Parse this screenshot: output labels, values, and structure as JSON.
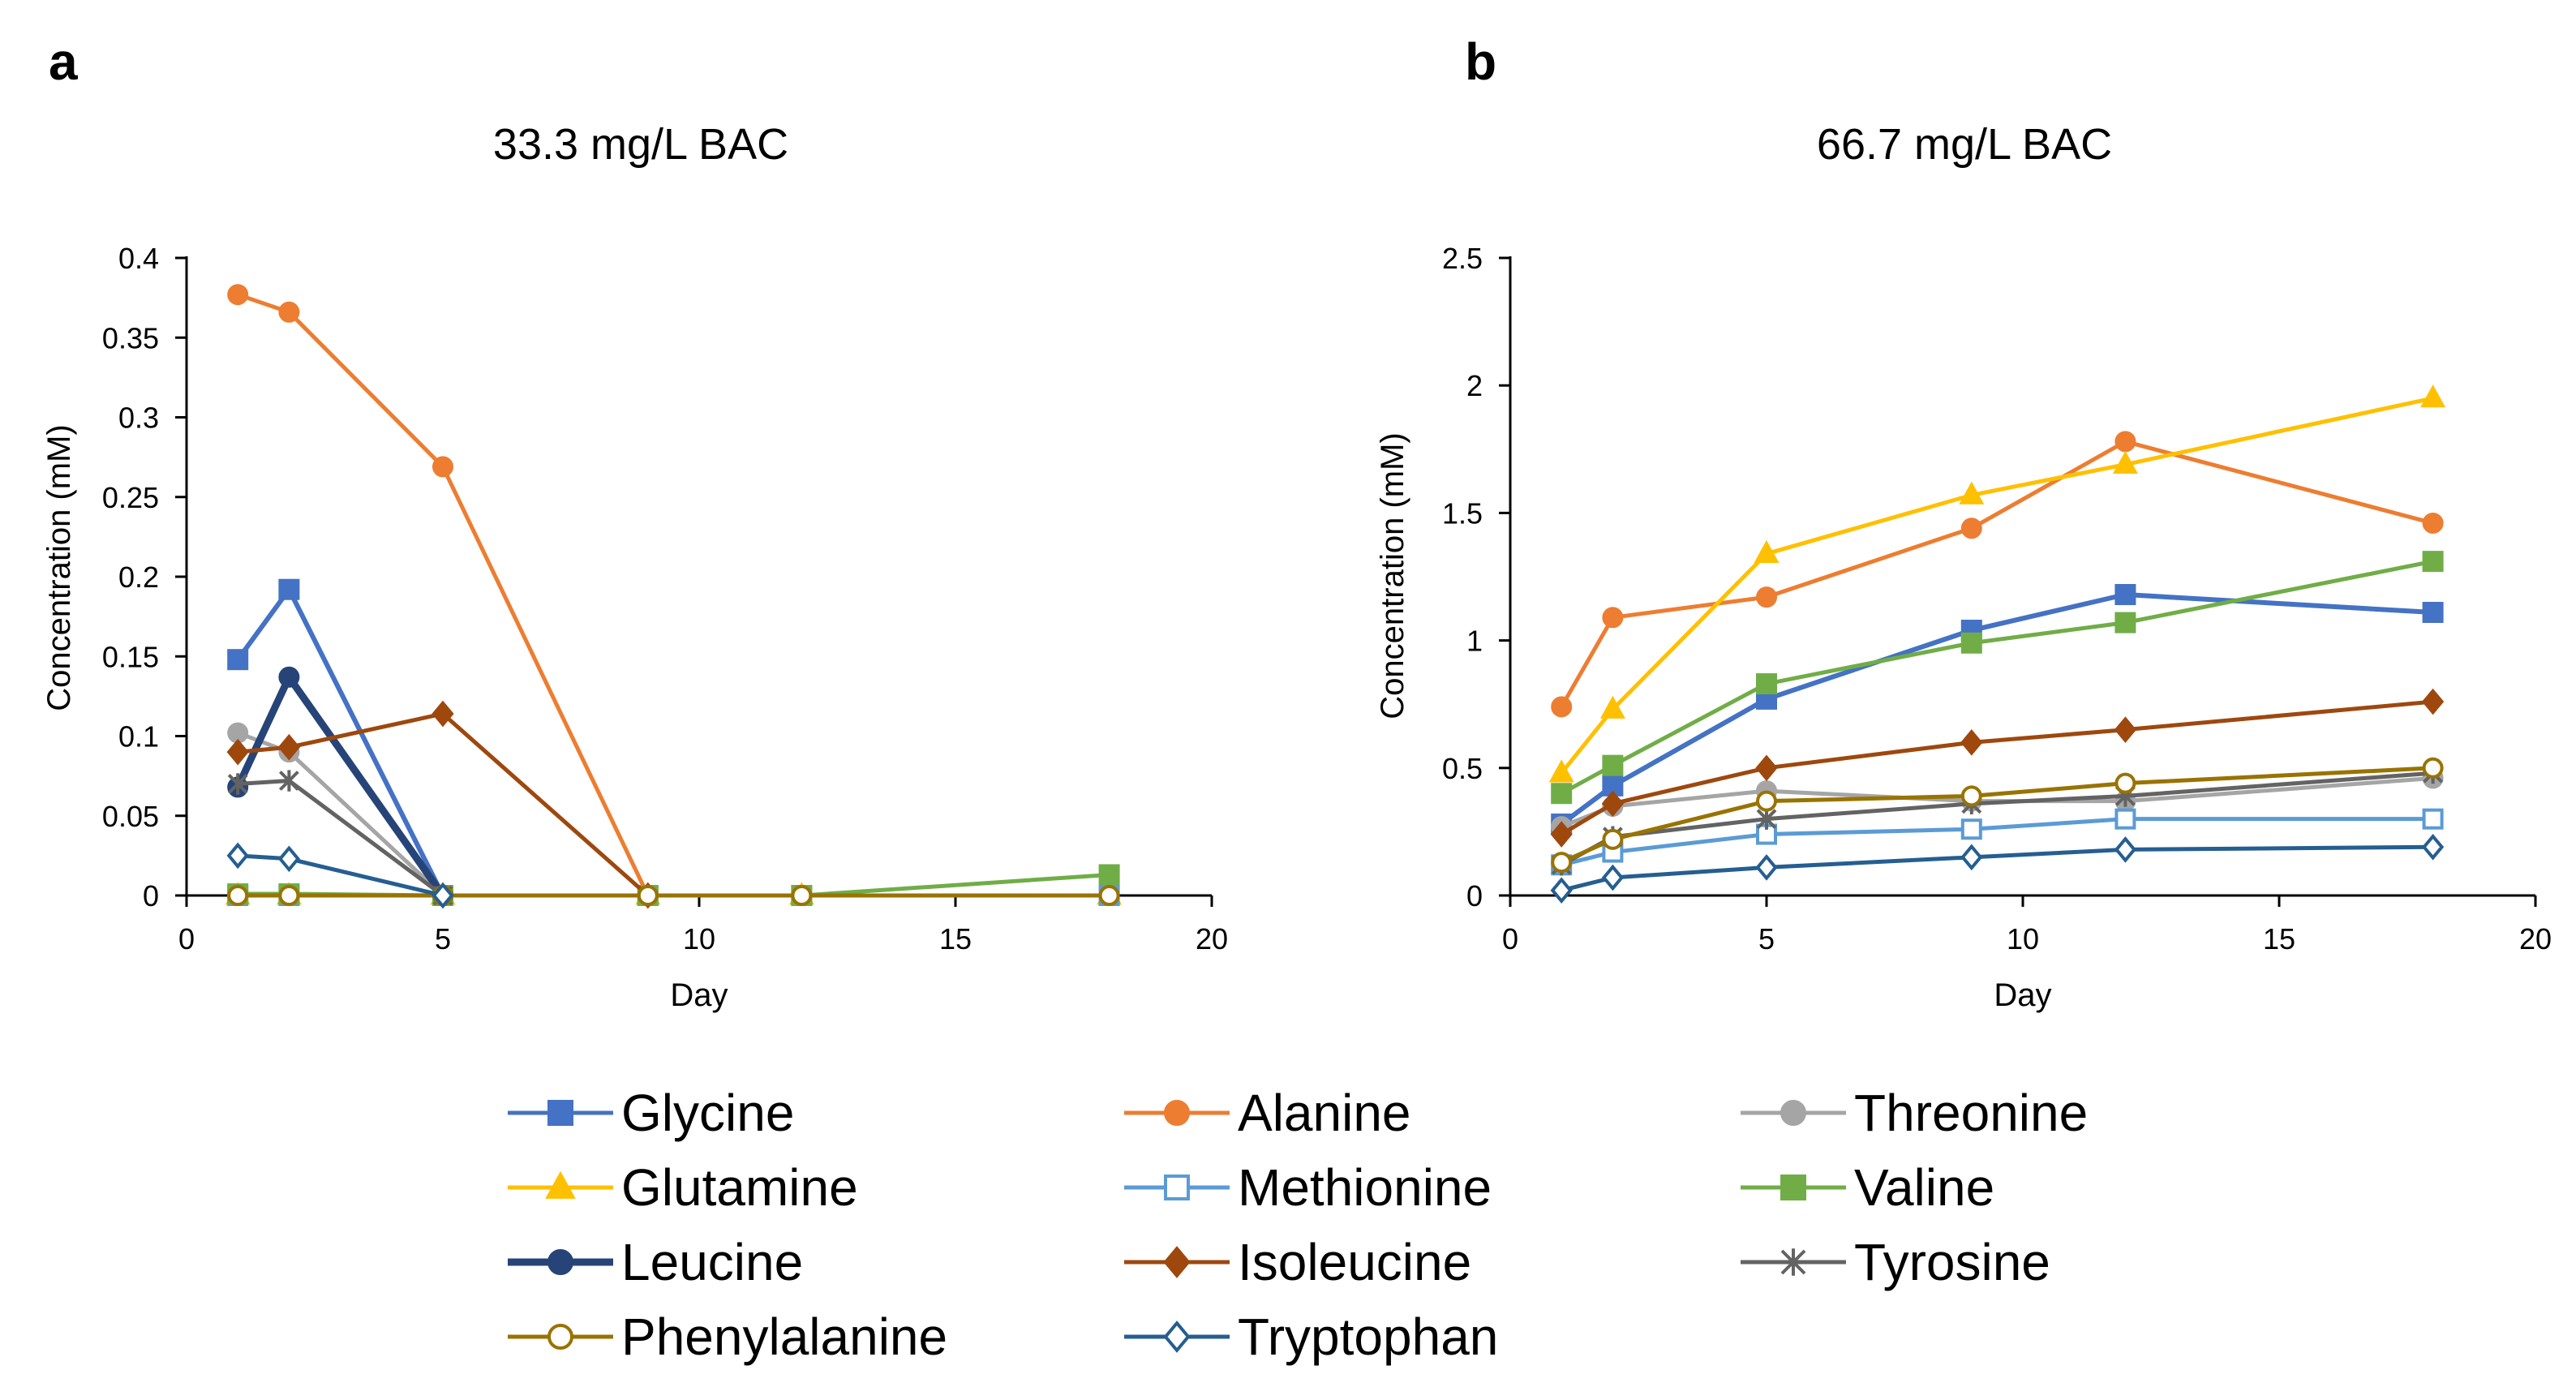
{
  "chart_data": [
    {
      "type": "line",
      "panel_label": "a",
      "title": "33.3 mg/L BAC",
      "xlabel": "Day",
      "ylabel": "Concentration (mM)",
      "xlim": [
        0,
        20
      ],
      "ylim": [
        0,
        0.4
      ],
      "xticks": [
        0,
        5,
        10,
        15,
        20
      ],
      "yticks": [
        0,
        0.05,
        0.1,
        0.15,
        0.2,
        0.25,
        0.3,
        0.35,
        0.4
      ],
      "ytick_labels": [
        "0",
        "0.05",
        "0.1",
        "0.15",
        "0.2",
        "0.25",
        "0.3",
        "0.35",
        "0.4"
      ],
      "grid": false,
      "series": [
        {
          "name": "Glycine",
          "x": [
            1,
            2,
            5
          ],
          "values": [
            0.148,
            0.192,
            0.0
          ]
        },
        {
          "name": "Alanine",
          "x": [
            1,
            2,
            5,
            9
          ],
          "values": [
            0.377,
            0.366,
            0.269,
            0.0
          ]
        },
        {
          "name": "Threonine",
          "x": [
            1,
            2,
            5
          ],
          "values": [
            0.102,
            0.09,
            0.0
          ]
        },
        {
          "name": "Glutamine",
          "x": [
            1,
            2,
            5,
            9,
            12,
            18
          ],
          "values": [
            0.0,
            0.0,
            0.0,
            0.0,
            0.0,
            0.0
          ]
        },
        {
          "name": "Methionine",
          "x": [
            1,
            2,
            5,
            9,
            12,
            18
          ],
          "values": [
            0.0,
            0.0,
            0.0,
            0.0,
            0.0,
            0.0
          ]
        },
        {
          "name": "Valine",
          "x": [
            1,
            2,
            5,
            9,
            12,
            18
          ],
          "values": [
            0.001,
            0.001,
            0.0,
            0.0,
            0.0,
            0.013
          ]
        },
        {
          "name": "Leucine",
          "x": [
            1,
            2,
            5
          ],
          "values": [
            0.068,
            0.137,
            0.0
          ]
        },
        {
          "name": "Isoleucine",
          "x": [
            1,
            2,
            5,
            9
          ],
          "values": [
            0.09,
            0.093,
            0.114,
            0.0
          ]
        },
        {
          "name": "Tyrosine",
          "x": [
            1,
            2,
            5
          ],
          "values": [
            0.07,
            0.072,
            0.0
          ]
        },
        {
          "name": "Phenylalanine",
          "x": [
            1,
            2,
            5,
            9,
            12,
            18
          ],
          "values": [
            0.0,
            0.0,
            0.0,
            0.0,
            0.0,
            0.0
          ]
        },
        {
          "name": "Tryptophan",
          "x": [
            1,
            2,
            5
          ],
          "values": [
            0.025,
            0.023,
            0.0
          ]
        }
      ]
    },
    {
      "type": "line",
      "panel_label": "b",
      "title": "66.7 mg/L BAC",
      "xlabel": "Day",
      "ylabel": "Concentration (mM)",
      "xlim": [
        0,
        20
      ],
      "ylim": [
        0,
        2.5
      ],
      "xticks": [
        0,
        5,
        10,
        15,
        20
      ],
      "yticks": [
        0,
        0.5,
        1,
        1.5,
        2,
        2.5
      ],
      "ytick_labels": [
        "0",
        "0.5",
        "1",
        "1.5",
        "2",
        "2.5"
      ],
      "grid": false,
      "series": [
        {
          "name": "Glycine",
          "x": [
            1,
            2,
            5,
            9,
            12,
            18
          ],
          "values": [
            0.28,
            0.43,
            0.77,
            1.04,
            1.18,
            1.11
          ]
        },
        {
          "name": "Alanine",
          "x": [
            1,
            2,
            5,
            9,
            12,
            18
          ],
          "values": [
            0.74,
            1.09,
            1.17,
            1.44,
            1.78,
            1.46
          ]
        },
        {
          "name": "Threonine",
          "x": [
            1,
            2,
            5,
            9,
            12,
            18
          ],
          "values": [
            0.27,
            0.35,
            0.41,
            0.37,
            0.37,
            0.46
          ]
        },
        {
          "name": "Glutamine",
          "x": [
            1,
            2,
            5,
            9,
            12,
            18
          ],
          "values": [
            0.48,
            0.73,
            1.34,
            1.57,
            1.69,
            1.95
          ]
        },
        {
          "name": "Methionine",
          "x": [
            1,
            2,
            5,
            9,
            12,
            18
          ],
          "values": [
            0.12,
            0.17,
            0.24,
            0.26,
            0.3,
            0.3
          ]
        },
        {
          "name": "Valine",
          "x": [
            1,
            2,
            5,
            9,
            12,
            18
          ],
          "values": [
            0.4,
            0.51,
            0.83,
            0.99,
            1.07,
            1.31
          ]
        },
        {
          "name": "Leucine",
          "x": [],
          "values": []
        },
        {
          "name": "Isoleucine",
          "x": [
            1,
            2,
            5,
            9,
            12,
            18
          ],
          "values": [
            0.24,
            0.36,
            0.5,
            0.6,
            0.65,
            0.76
          ]
        },
        {
          "name": "Tyrosine",
          "x": [
            1,
            2,
            5,
            9,
            12,
            18
          ],
          "values": [
            0.12,
            0.23,
            0.3,
            0.36,
            0.39,
            0.48
          ]
        },
        {
          "name": "Phenylalanine",
          "x": [
            1,
            2,
            5,
            9,
            12,
            18
          ],
          "values": [
            0.13,
            0.22,
            0.37,
            0.39,
            0.44,
            0.5
          ]
        },
        {
          "name": "Tryptophan",
          "x": [
            1,
            2,
            5,
            9,
            12,
            18
          ],
          "values": [
            0.02,
            0.07,
            0.11,
            0.15,
            0.18,
            0.19
          ]
        }
      ]
    }
  ],
  "legend": {
    "placement": "bottom",
    "items": [
      {
        "name": "Glycine",
        "color": "#4472c4",
        "marker": "square",
        "fill": "solid"
      },
      {
        "name": "Alanine",
        "color": "#ed7d31",
        "marker": "circle",
        "fill": "solid"
      },
      {
        "name": "Threonine",
        "color": "#a5a5a5",
        "marker": "circle",
        "fill": "solid"
      },
      {
        "name": "Glutamine",
        "color": "#ffc000",
        "marker": "triangle",
        "fill": "solid"
      },
      {
        "name": "Methionine",
        "color": "#5b9bd5",
        "marker": "square",
        "fill": "open"
      },
      {
        "name": "Valine",
        "color": "#70ad47",
        "marker": "square",
        "fill": "solid"
      },
      {
        "name": "Leucine",
        "color": "#264478",
        "marker": "circle",
        "fill": "solid"
      },
      {
        "name": "Isoleucine",
        "color": "#9e480e",
        "marker": "diamond",
        "fill": "solid"
      },
      {
        "name": "Tyrosine",
        "color": "#636363",
        "marker": "star",
        "fill": "solid"
      },
      {
        "name": "Phenylalanine",
        "color": "#997300",
        "marker": "circle",
        "fill": "open"
      },
      {
        "name": "Tryptophan",
        "color": "#255e91",
        "marker": "diamond",
        "fill": "open"
      }
    ]
  }
}
